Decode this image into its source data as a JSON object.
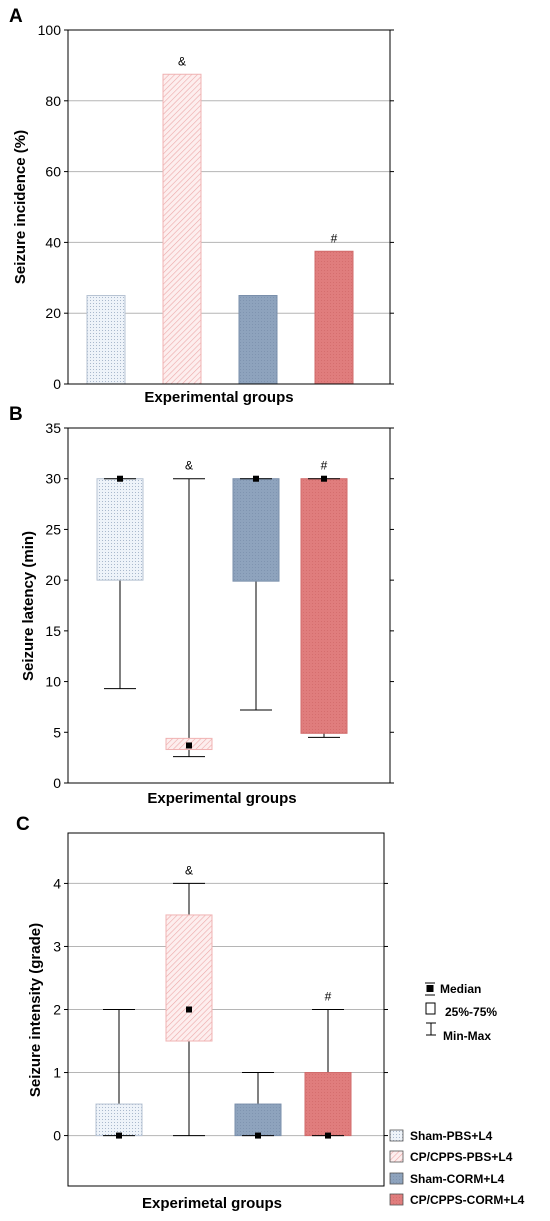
{
  "colors": {
    "frame": "#000000",
    "grid": "#b5b5b5",
    "sham_pbs": "#eaf0f7",
    "cp_pbs": "#fbe3e3",
    "sham_corm": "#8aa0bb",
    "cp_corm": "#df7a7a",
    "cp_pbs_stroke": "#e89a9a",
    "sham_pbs_stroke": "#9aaac0"
  },
  "panels": {
    "a": {
      "letter": "A"
    },
    "b": {
      "letter": "B"
    },
    "c": {
      "letter": "C"
    }
  },
  "legend": {
    "box_items": [
      {
        "marker": "median",
        "label": "Median"
      },
      {
        "marker": "box",
        "label": "25%-75%"
      },
      {
        "marker": "whisker",
        "label": "Min-Max"
      }
    ],
    "groups": [
      {
        "label": "Sham-PBS+L4",
        "color": "#eaf0f7"
      },
      {
        "label": "CP/CPPS-PBS+L4",
        "color": "#fbe3e3"
      },
      {
        "label": "Sham-CORM+L4",
        "color": "#8aa0bb"
      },
      {
        "label": "CP/CPPS-CORM+L4",
        "color": "#df7a7a"
      }
    ]
  },
  "chart_data": [
    {
      "type": "bar",
      "panel": "A",
      "categories": [
        "Sham-PBS+L4",
        "CP/CPPS-PBS+L4",
        "Sham-CORM+L4",
        "CP/CPPS-CORM+L4"
      ],
      "values": [
        25,
        87.5,
        25,
        37.5
      ],
      "annotations": [
        "",
        "&",
        "",
        "#"
      ],
      "ylabel": "Seizure incidence (%)",
      "xlabel": "Experimental groups",
      "ylim": [
        0,
        100
      ],
      "yticks": [
        0,
        20,
        40,
        60,
        80,
        100
      ],
      "grid": true
    },
    {
      "type": "box",
      "panel": "B",
      "categories": [
        "Sham-PBS+L4",
        "CP/CPPS-PBS+L4",
        "Sham-CORM+L4",
        "CP/CPPS-CORM+L4"
      ],
      "boxes": [
        {
          "min": 9.3,
          "q1": 20,
          "median": 30,
          "q3": 30,
          "max": 30
        },
        {
          "min": 2.6,
          "q1": 3.3,
          "median": 3.7,
          "q3": 4.4,
          "max": 30
        },
        {
          "min": 7.2,
          "q1": 19.9,
          "median": 30,
          "q3": 30,
          "max": 30
        },
        {
          "min": 4.5,
          "q1": 4.9,
          "median": 30,
          "q3": 30,
          "max": 30
        }
      ],
      "annotations": [
        "",
        "&",
        "",
        "#"
      ],
      "ylabel": "Seizure latency (min)",
      "xlabel": "Experimental groups",
      "ylim": [
        0,
        35
      ],
      "yticks": [
        0,
        5,
        10,
        15,
        20,
        25,
        30,
        35
      ],
      "grid": false
    },
    {
      "type": "box",
      "panel": "C",
      "categories": [
        "Sham-PBS+L4",
        "CP/CPPS-PBS+L4",
        "Sham-CORM+L4",
        "CP/CPPS-CORM+L4"
      ],
      "boxes": [
        {
          "min": 0,
          "q1": 0,
          "median": 0,
          "q3": 0.5,
          "max": 2
        },
        {
          "min": 0,
          "q1": 1.5,
          "median": 2,
          "q3": 3.5,
          "max": 4
        },
        {
          "min": 0,
          "q1": 0,
          "median": 0,
          "q3": 0.5,
          "max": 1
        },
        {
          "min": 0,
          "q1": 0,
          "median": 0,
          "q3": 1,
          "max": 2
        }
      ],
      "annotations": [
        "",
        "&",
        "",
        "#"
      ],
      "ylabel": "Seizure intensity (grade)",
      "xlabel": "Experimetal groups",
      "ylim": [
        -0.8,
        4.8
      ],
      "yticks": [
        0,
        1,
        2,
        3,
        4
      ],
      "grid": true
    }
  ]
}
